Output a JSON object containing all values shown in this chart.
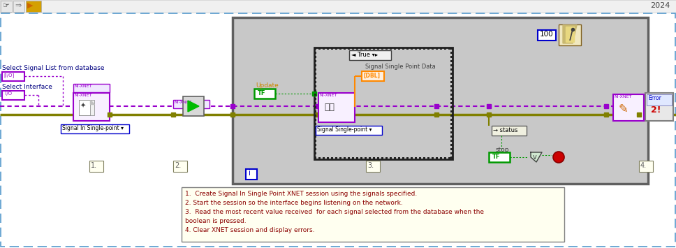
{
  "bg_color": "#ffffff",
  "outer_border_color": "#5599cc",
  "year_text": "2024",
  "main_panel_bg": "#c8c8c8",
  "main_panel_border": "#606060",
  "note_box_bg": "#fffff0",
  "note_lines": [
    "1.  Create Signal In Single Point XNET session using the signals specified.",
    "2. Start the session so the interface begins listening on the network.",
    "3.  Read the most recent value received  for each signal selected from the database when the",
    "boolean is pressed.",
    "4. Clear XNET session and display errors."
  ],
  "note_color": "#8b0000",
  "select_signal_label": "Select Signal List from database",
  "select_interface_label": "Select Interface",
  "wire_purple_color": "#9900cc",
  "wire_gold_color": "#808000",
  "update_label": "Update",
  "signal_single_point_data_label": "Signal Single Point Data",
  "signal_in_single_point_label": "Signal In Single-point ▾",
  "signal_single_point_label": "Signal Single-point ▾",
  "status_label": "status",
  "stop_label": "stop",
  "true_label": "◄ True ▾▸",
  "dbl_color": "#ff8800",
  "tf_color": "#009900",
  "red_stop_color": "#cc0000",
  "num_100": "100",
  "step_labels": [
    "1.",
    "2.",
    "3.",
    "4."
  ],
  "step_label_color": "#606060",
  "i_label_color": "#0000cc",
  "play_color": "#00bb00",
  "purple_block_bg": "#f0e0ff",
  "ni_xnet_label": "NI-XNET",
  "update_color": "#cc8800"
}
